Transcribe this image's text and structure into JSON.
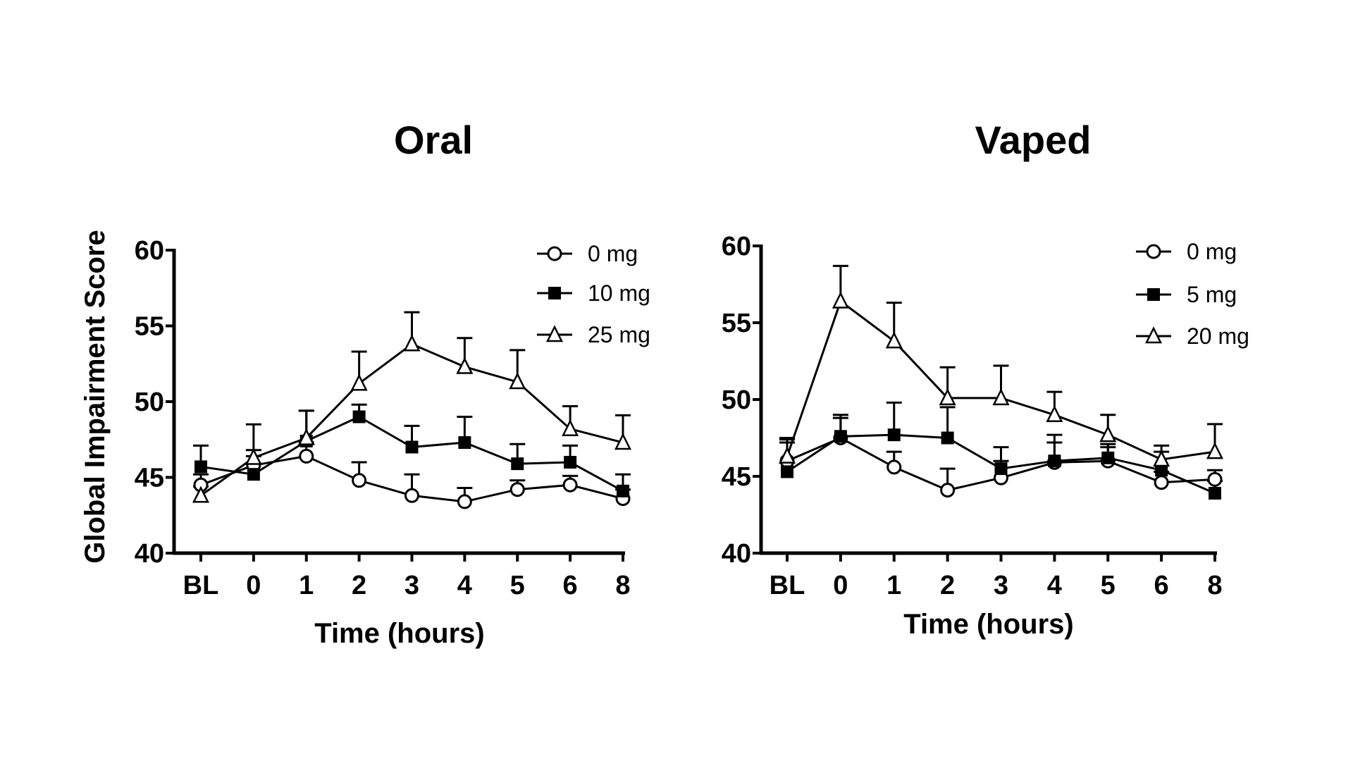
{
  "chart_data": [
    {
      "type": "line",
      "title": "Oral",
      "xlabel": "Time (hours)",
      "ylabel": "Global Impairment Score",
      "categories": [
        "BL",
        "0",
        "1",
        "2",
        "3",
        "4",
        "5",
        "6",
        "8"
      ],
      "ylim": [
        40,
        60
      ],
      "yticks": [
        "40",
        "45",
        "50",
        "55",
        "60"
      ],
      "legend_position": "top-right",
      "series": [
        {
          "name": "0 mg",
          "marker": "circle-open",
          "values": [
            44.5,
            45.8,
            46.4,
            44.8,
            43.8,
            43.4,
            44.2,
            44.5,
            43.6
          ],
          "error": [
            0.7,
            1.0,
            0.9,
            1.2,
            1.4,
            0.9,
            0.6,
            0.6,
            0.6
          ]
        },
        {
          "name": "10 mg",
          "marker": "square-filled",
          "values": [
            45.7,
            45.2,
            47.4,
            49.0,
            47.0,
            47.3,
            45.9,
            46.0,
            44.1
          ],
          "error": [
            1.4,
            1.2,
            2.0,
            0.8,
            1.4,
            1.7,
            1.3,
            1.1,
            1.1
          ]
        },
        {
          "name": "25 mg",
          "marker": "triangle-open",
          "values": [
            43.8,
            46.3,
            47.6,
            51.2,
            53.8,
            52.3,
            51.3,
            48.2,
            47.3
          ],
          "error": [
            0.6,
            2.2,
            1.8,
            2.1,
            2.1,
            1.9,
            2.1,
            1.5,
            1.8
          ]
        }
      ]
    },
    {
      "type": "line",
      "title": "Vaped",
      "xlabel": "Time (hours)",
      "ylabel": "",
      "categories": [
        "BL",
        "0",
        "1",
        "2",
        "3",
        "4",
        "5",
        "6",
        "8"
      ],
      "ylim": [
        40,
        60
      ],
      "yticks": [
        "40",
        "45",
        "50",
        "55",
        "60"
      ],
      "legend_position": "top-right",
      "series": [
        {
          "name": "0 mg",
          "marker": "circle-open",
          "values": [
            46.0,
            47.5,
            45.6,
            44.1,
            44.9,
            45.9,
            46.0,
            44.6,
            44.8
          ],
          "error": [
            1.2,
            1.3,
            1.0,
            1.4,
            1.1,
            1.3,
            0.9,
            0.7,
            0.6
          ]
        },
        {
          "name": "5 mg",
          "marker": "square-filled",
          "values": [
            45.3,
            47.6,
            47.7,
            47.5,
            45.5,
            46.0,
            46.2,
            45.4,
            43.9
          ],
          "error": [
            2.1,
            1.4,
            2.1,
            2.0,
            1.4,
            1.7,
            0.9,
            1.2,
            0.8
          ]
        },
        {
          "name": "20 mg",
          "marker": "triangle-open",
          "values": [
            46.3,
            56.4,
            53.8,
            50.1,
            50.1,
            49.0,
            47.7,
            46.1,
            46.6
          ],
          "error": [
            1.2,
            2.3,
            2.5,
            2.0,
            2.1,
            1.5,
            1.3,
            0.9,
            1.8
          ]
        }
      ]
    }
  ]
}
